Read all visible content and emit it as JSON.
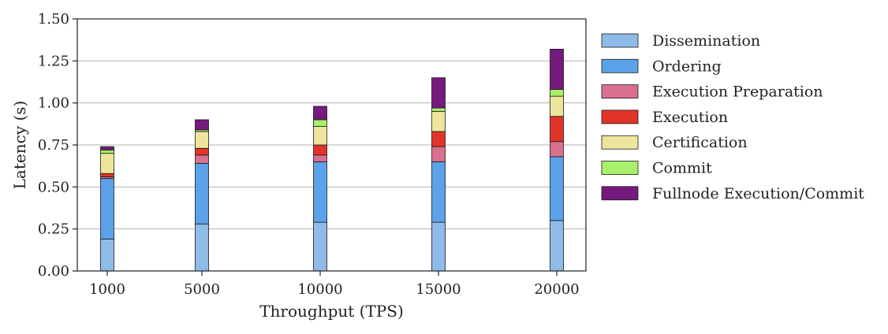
{
  "chart_data": {
    "type": "bar",
    "stacked": true,
    "title": "",
    "xlabel": "Throughput (TPS)",
    "ylabel": "Latency (s)",
    "categories": [
      "1000",
      "5000",
      "10000",
      "15000",
      "20000"
    ],
    "ylim": [
      0,
      1.5
    ],
    "yticks": [
      "0.00",
      "0.25",
      "0.50",
      "0.75",
      "1.00",
      "1.25",
      "1.50"
    ],
    "grid": "horizontal",
    "legend_position": "right",
    "series": [
      {
        "name": "Dissemination",
        "color": "#8fbbe8",
        "values": [
          0.19,
          0.28,
          0.29,
          0.29,
          0.3
        ]
      },
      {
        "name": "Ordering",
        "color": "#5ba2e8",
        "values": [
          0.36,
          0.36,
          0.36,
          0.36,
          0.38
        ]
      },
      {
        "name": "Execution Preparation",
        "color": "#d8708e",
        "values": [
          0.01,
          0.05,
          0.04,
          0.09,
          0.09
        ]
      },
      {
        "name": "Execution",
        "color": "#e33429",
        "values": [
          0.02,
          0.04,
          0.06,
          0.09,
          0.15
        ]
      },
      {
        "name": "Certification",
        "color": "#ede59a",
        "values": [
          0.12,
          0.1,
          0.11,
          0.12,
          0.12
        ]
      },
      {
        "name": "Commit",
        "color": "#a6f06a",
        "values": [
          0.02,
          0.01,
          0.04,
          0.02,
          0.04
        ]
      },
      {
        "name": "Fullnode Execution/Commit",
        "color": "#761a7e",
        "values": [
          0.02,
          0.06,
          0.08,
          0.18,
          0.24
        ]
      }
    ]
  }
}
